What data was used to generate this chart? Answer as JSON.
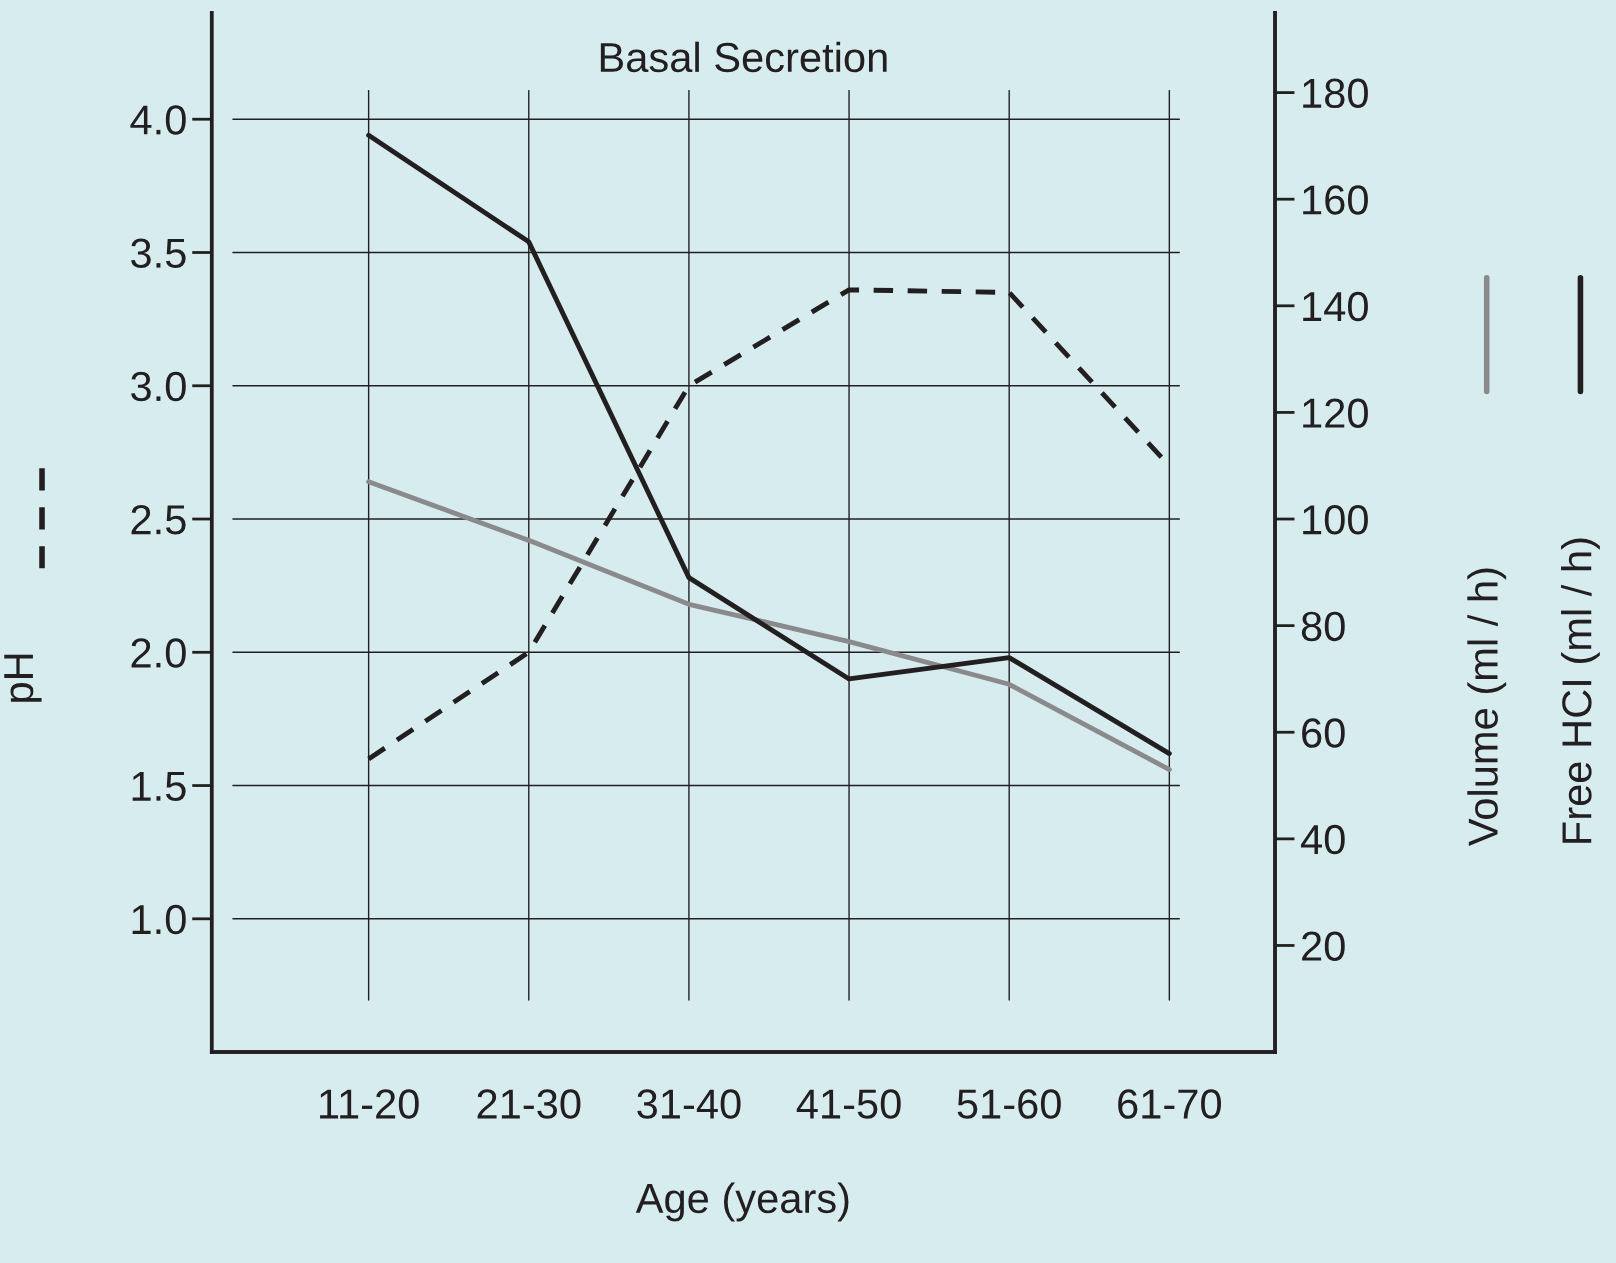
{
  "chart_data": {
    "type": "line",
    "title": "Basal Secretion",
    "xlabel": "Age (years)",
    "ylabel": "pH",
    "categories": [
      "11-20",
      "21-30",
      "31-40",
      "41-50",
      "51-60",
      "61-70"
    ],
    "series": [
      {
        "color": "#231f20",
        "line_style": "dashed",
        "values": [
          1.6,
          2.0,
          3.0,
          3.36,
          3.35,
          2.7
        ]
      },
      {
        "name": "Volume (ml / h)",
        "color": "#8a8a8c",
        "axis": "y2",
        "line_style": "solid",
        "values": [
          107,
          96,
          84,
          77,
          69,
          53
        ]
      },
      {
        "name": "Free HCI (ml / h)",
        "color": "#231f20",
        "axis": "y2",
        "line_style": "solid",
        "values": [
          172,
          152,
          89,
          70,
          74,
          56
        ]
      }
    ],
    "ylim": [
      0.5,
      4.4
    ],
    "yticks": [
      {
        "value": 1.0,
        "label": "1.0"
      },
      {
        "value": 1.5,
        "label": "1.5"
      },
      {
        "value": 2.0,
        "label": "2.0"
      },
      {
        "value": 2.5,
        "label": "2.5"
      },
      {
        "value": 3.0,
        "label": "3.0"
      },
      {
        "value": 3.5,
        "label": "3.5"
      },
      {
        "value": 4.0,
        "label": "4.0"
      }
    ],
    "y2lim": [
      0,
      195
    ],
    "y2ticks": [
      20,
      40,
      60,
      80,
      100,
      120,
      140,
      160,
      180
    ],
    "grid": true,
    "legend": "right",
    "marker": "none"
  }
}
